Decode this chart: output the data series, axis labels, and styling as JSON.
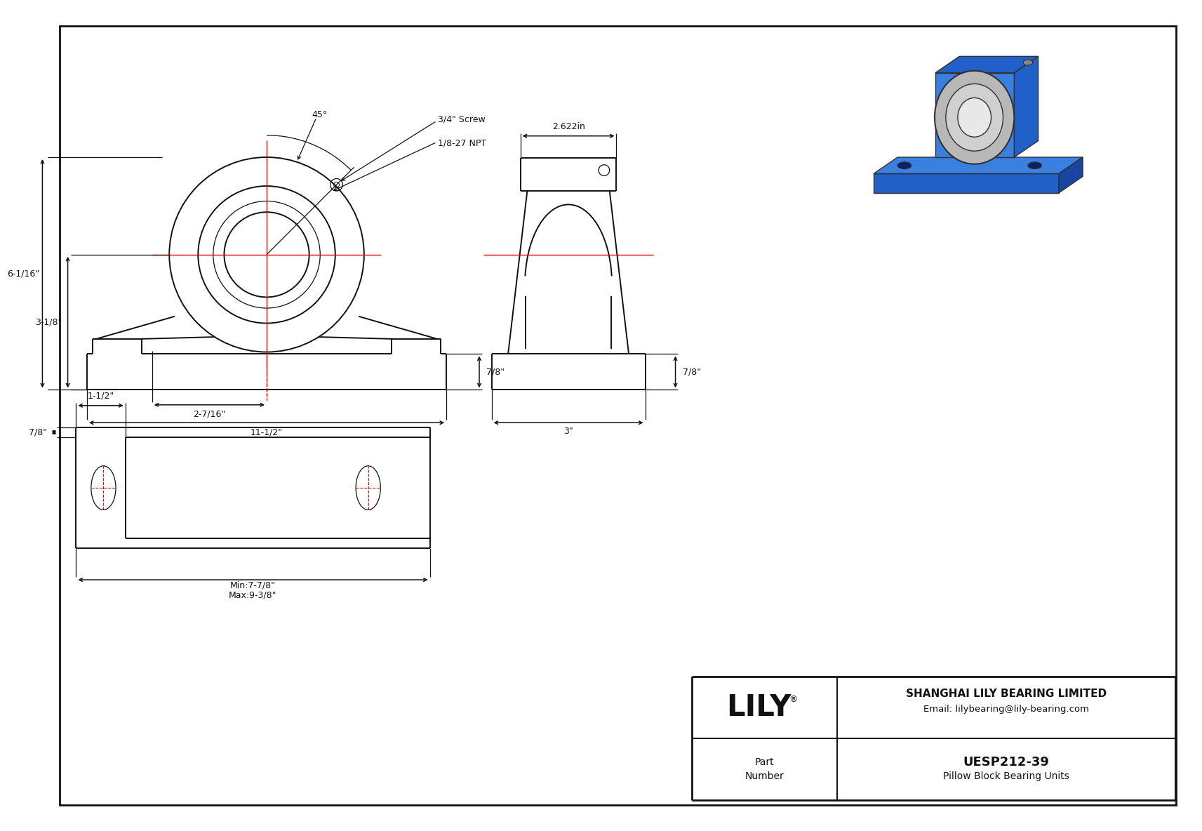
{
  "bg_color": "#ffffff",
  "line_color": "#111111",
  "red_color": "#ee0000",
  "dim_color": "#111111",
  "title": "UESP212-39",
  "subtitle": "Pillow Block Bearing Units",
  "company": "SHANGHAI LILY BEARING LIMITED",
  "email": "Email: lilybearing@lily-bearing.com",
  "part_label": "Part\nNumber",
  "logo_text": "LILY",
  "logo_reg": "®",
  "dimensions": {
    "height_total": "6-1/16\"",
    "height_base": "3-1/8\"",
    "width_total": "11-1/2\"",
    "bore_center": "2-7/16\"",
    "base_height": "7/8\"",
    "side_width": "3\"",
    "side_top": "2.622in",
    "angle": "45°",
    "screw": "3/4\" Screw",
    "npt": "1/8-27 NPT",
    "bot_min": "Min:7-7/8\"",
    "bot_max": "Max:9-3/8\"",
    "bot_side": "1-1/2\"",
    "bot_height": "7/8\""
  },
  "iso_blue_dark": "#1845a0",
  "iso_blue_mid": "#2060c8",
  "iso_blue_light": "#3a80e0",
  "iso_silver": "#b8b8b8",
  "iso_white": "#e8e8e8",
  "iso_dark": "#303030"
}
